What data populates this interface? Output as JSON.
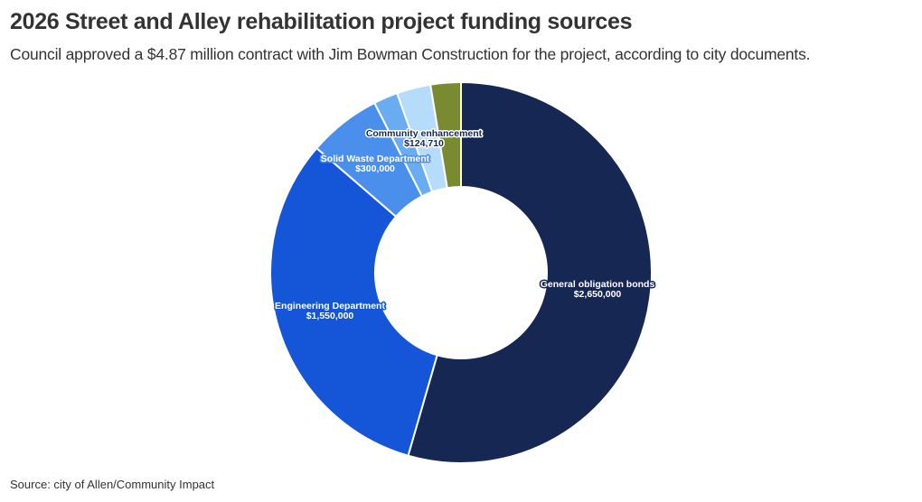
{
  "header": {
    "title": "2026 Street and Alley rehabilitation project funding sources",
    "subtitle": "Council approved a $4.87 million contract with Jim Bowman Construction for the project, according to city documents."
  },
  "footer": {
    "source": "Source: city of Allen/Community Impact"
  },
  "chart_data": {
    "type": "pie",
    "variant": "donut",
    "title": "2026 Street and Alley rehabilitation project funding sources",
    "categories": [
      "General obligation bonds",
      "Engineering Department",
      "Solid Waste Department",
      "",
      "",
      "Community enhancement"
    ],
    "values": [
      2650000,
      1550000,
      300000,
      100000,
      140000,
      124710
    ],
    "value_labels": [
      "$2,650,000",
      "$1,550,000",
      "$300,000",
      "",
      "",
      "$124,710"
    ],
    "colors": [
      "#172754",
      "#1556d8",
      "#4a8fec",
      "#6aacf2",
      "#b5dcfb",
      "#7a8a30"
    ],
    "legend": "none"
  }
}
